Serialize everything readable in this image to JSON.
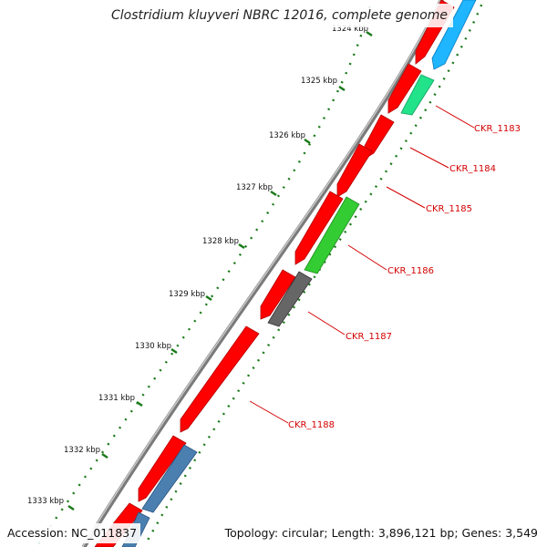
{
  "title": "Clostridium kluyveri NBRC 12016, complete genome",
  "footer": {
    "accession": "Accession: NC_011837",
    "summary": "Topology: circular; Length: 3,896,121 bp; Genes: 3,549"
  },
  "kbp_labels": [
    "1324 kbp",
    "1325 kbp",
    "1326 kbp",
    "1327 kbp",
    "1328 kbp",
    "1329 kbp",
    "1330 kbp",
    "1331 kbp",
    "1332 kbp",
    "1333 kbp"
  ],
  "gene_labels": [
    "CKR_1183",
    "CKR_1184",
    "CKR_1185",
    "CKR_1186",
    "CKR_1187",
    "CKR_1188"
  ],
  "colors": {
    "backbone": "#808080",
    "forward_gene": "#ff0000",
    "reverse_blue": "#1fb5ff",
    "reverse_mint": "#22e28a",
    "reverse_green": "#33cc33",
    "reverse_gray": "#666666",
    "reverse_steel": "#4a7fb0",
    "gc_dots": "#1a7a1a",
    "label": "#d40000"
  }
}
